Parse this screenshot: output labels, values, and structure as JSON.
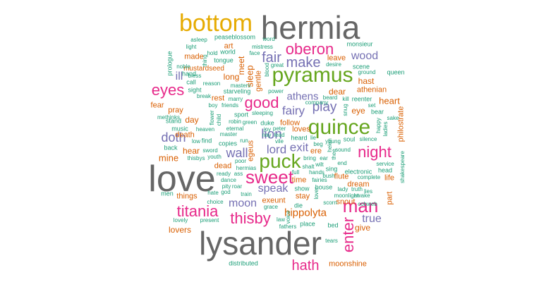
{
  "words": [
    {
      "text": "love",
      "color": "#666666"
    },
    {
      "text": "lysander",
      "color": "#666666"
    },
    {
      "text": "hermia",
      "color": "#666666"
    },
    {
      "text": "bottom",
      "color": "#e6ab02"
    },
    {
      "text": "pyramus",
      "color": "#66a61e"
    },
    {
      "text": "quince",
      "color": "#66a61e"
    },
    {
      "text": "puck",
      "color": "#66a61e"
    },
    {
      "text": "sweet",
      "color": "#e7298a"
    },
    {
      "text": "man",
      "color": "#e7298a"
    },
    {
      "text": "night",
      "color": "#e7298a"
    },
    {
      "text": "oberon",
      "color": "#e7298a"
    },
    {
      "text": "eyes",
      "color": "#e7298a"
    },
    {
      "text": "good",
      "color": "#e7298a"
    },
    {
      "text": "enter",
      "color": "#e7298a"
    },
    {
      "text": "thisby",
      "color": "#e7298a"
    },
    {
      "text": "titania",
      "color": "#e7298a"
    },
    {
      "text": "hath",
      "color": "#e7298a"
    },
    {
      "text": "fair",
      "color": "#7570b3"
    },
    {
      "text": "make",
      "color": "#7570b3"
    },
    {
      "text": "play",
      "color": "#7570b3"
    },
    {
      "text": "lion",
      "color": "#7570b3"
    },
    {
      "text": "fairy",
      "color": "#7570b3"
    },
    {
      "text": "doth",
      "color": "#7570b3"
    },
    {
      "text": "lord",
      "color": "#7570b3"
    },
    {
      "text": "exit",
      "color": "#7570b3"
    },
    {
      "text": "wall",
      "color": "#7570b3"
    },
    {
      "text": "speak",
      "color": "#7570b3"
    },
    {
      "text": "moon",
      "color": "#7570b3"
    },
    {
      "text": "true",
      "color": "#7570b3"
    },
    {
      "text": "wood",
      "color": "#7570b3"
    },
    {
      "text": "athens",
      "color": "#7570b3"
    },
    {
      "text": "hippolyta",
      "color": "#d95f02"
    },
    {
      "text": "ill",
      "color": "#7570b3"
    },
    {
      "text": "heart",
      "color": "#d95f02"
    },
    {
      "text": "athenian",
      "color": "#d95f02"
    },
    {
      "text": "dear",
      "color": "#d95f02"
    },
    {
      "text": "eye",
      "color": "#d95f02"
    },
    {
      "text": "hast",
      "color": "#d95f02"
    },
    {
      "text": "leave",
      "color": "#d95f02"
    },
    {
      "text": "sleep",
      "color": "#d95f02"
    },
    {
      "text": "meet",
      "color": "#d95f02"
    },
    {
      "text": "long",
      "color": "#d95f02"
    },
    {
      "text": "made",
      "color": "#d95f02"
    },
    {
      "text": "art",
      "color": "#d95f02"
    },
    {
      "text": "rest",
      "color": "#d95f02"
    },
    {
      "text": "day",
      "color": "#d95f02"
    },
    {
      "text": "fear",
      "color": "#d95f02"
    },
    {
      "text": "pray",
      "color": "#d95f02"
    },
    {
      "text": "mine",
      "color": "#d95f02"
    },
    {
      "text": "hear",
      "color": "#d95f02"
    },
    {
      "text": "death",
      "color": "#d95f02"
    },
    {
      "text": "dead",
      "color": "#d95f02"
    },
    {
      "text": "things",
      "color": "#d95f02"
    },
    {
      "text": "lovers",
      "color": "#d95f02"
    },
    {
      "text": "exeunt",
      "color": "#d95f02"
    },
    {
      "text": "time",
      "color": "#d95f02"
    },
    {
      "text": "follow",
      "color": "#d95f02"
    },
    {
      "text": "loves",
      "color": "#d95f02"
    },
    {
      "text": "stay",
      "color": "#d95f02"
    },
    {
      "text": "flute",
      "color": "#d95f02"
    },
    {
      "text": "dream",
      "color": "#d95f02"
    },
    {
      "text": "snout",
      "color": "#d95f02"
    },
    {
      "text": "give",
      "color": "#d95f02"
    },
    {
      "text": "life",
      "color": "#d95f02"
    },
    {
      "text": "part",
      "color": "#d95f02"
    },
    {
      "text": "gentle",
      "color": "#d95f02"
    },
    {
      "text": "egeus",
      "color": "#d95f02"
    },
    {
      "text": "ere",
      "color": "#d95f02"
    },
    {
      "text": "moonshine",
      "color": "#d95f02"
    },
    {
      "text": "philostrate",
      "color": "#d95f02"
    },
    {
      "text": "mustardseed",
      "color": "#d95f02"
    },
    {
      "text": "peaseblossom",
      "color": "#1b9e77"
    },
    {
      "text": "asleep",
      "color": "#1b9e77"
    },
    {
      "text": "word",
      "color": "#1b9e77"
    },
    {
      "text": "mistress",
      "color": "#1b9e77"
    },
    {
      "text": "light",
      "color": "#1b9e77"
    },
    {
      "text": "hold",
      "color": "#1b9e77"
    },
    {
      "text": "world",
      "color": "#1b9e77"
    },
    {
      "text": "thing",
      "color": "#1b9e77"
    },
    {
      "text": "tongue",
      "color": "#1b9e77"
    },
    {
      "text": "noble",
      "color": "#1b9e77"
    },
    {
      "text": "bless",
      "color": "#1b9e77"
    },
    {
      "text": "hand",
      "color": "#1b9e77"
    },
    {
      "text": "prologue",
      "color": "#1b9e77"
    },
    {
      "text": "call",
      "color": "#1b9e77"
    },
    {
      "text": "reason",
      "color": "#1b9e77"
    },
    {
      "text": "masters",
      "color": "#1b9e77"
    },
    {
      "text": "sight",
      "color": "#1b9e77"
    },
    {
      "text": "break",
      "color": "#1b9e77"
    },
    {
      "text": "starveling",
      "color": "#1b9e77"
    },
    {
      "text": "power",
      "color": "#1b9e77"
    },
    {
      "text": "great",
      "color": "#1b9e77"
    },
    {
      "text": "blood",
      "color": "#1b9e77"
    },
    {
      "text": "face",
      "color": "#1b9e77"
    },
    {
      "text": "desire",
      "color": "#1b9e77"
    },
    {
      "text": "monsieur",
      "color": "#1b9e77"
    },
    {
      "text": "scene",
      "color": "#1b9e77"
    },
    {
      "text": "ground",
      "color": "#1b9e77"
    },
    {
      "text": "queen",
      "color": "#1b9e77"
    },
    {
      "text": "company",
      "color": "#1b9e77"
    },
    {
      "text": "kill",
      "color": "#1b9e77"
    },
    {
      "text": "reenter",
      "color": "#1b9e77"
    },
    {
      "text": "beard",
      "color": "#1b9e77"
    },
    {
      "text": "snug",
      "color": "#1b9e77"
    },
    {
      "text": "methinks",
      "color": "#1b9e77"
    },
    {
      "text": "boy",
      "color": "#1b9e77"
    },
    {
      "text": "friends",
      "color": "#1b9e77"
    },
    {
      "text": "marry",
      "color": "#1b9e77"
    },
    {
      "text": "set",
      "color": "#1b9e77"
    },
    {
      "text": "bear",
      "color": "#1b9e77"
    },
    {
      "text": "sake",
      "color": "#1b9e77"
    },
    {
      "text": "happy",
      "color": "#1b9e77"
    },
    {
      "text": "ladies",
      "color": "#1b9e77"
    },
    {
      "text": "stand",
      "color": "#1b9e77"
    },
    {
      "text": "flower",
      "color": "#1b9e77"
    },
    {
      "text": "child",
      "color": "#1b9e77"
    },
    {
      "text": "sport",
      "color": "#1b9e77"
    },
    {
      "text": "sleeping",
      "color": "#1b9e77"
    },
    {
      "text": "robin",
      "color": "#1b9e77"
    },
    {
      "text": "green",
      "color": "#1b9e77"
    },
    {
      "text": "duke",
      "color": "#1b9e77"
    },
    {
      "text": "music",
      "color": "#1b9e77"
    },
    {
      "text": "heaven",
      "color": "#1b9e77"
    },
    {
      "text": "eternal",
      "color": "#1b9e77"
    },
    {
      "text": "joy",
      "color": "#1b9e77"
    },
    {
      "text": "peter",
      "color": "#1b9e77"
    },
    {
      "text": "master",
      "color": "#1b9e77"
    },
    {
      "text": "low",
      "color": "#1b9e77"
    },
    {
      "text": "find",
      "color": "#1b9e77"
    },
    {
      "text": "run",
      "color": "#1b9e77"
    },
    {
      "text": "nay",
      "color": "#1b9e77"
    },
    {
      "text": "lead",
      "color": "#1b9e77"
    },
    {
      "text": "heard",
      "color": "#1b9e77"
    },
    {
      "text": "lie",
      "color": "#1b9e77"
    },
    {
      "text": "back",
      "color": "#1b9e77"
    },
    {
      "text": "copies",
      "color": "#1b9e77"
    },
    {
      "text": "sword",
      "color": "#1b9e77"
    },
    {
      "text": "thisbys",
      "color": "#1b9e77"
    },
    {
      "text": "vile",
      "color": "#1b9e77"
    },
    {
      "text": "beg",
      "color": "#1b9e77"
    },
    {
      "text": "young",
      "color": "#1b9e77"
    },
    {
      "text": "soul",
      "color": "#1b9e77"
    },
    {
      "text": "silence",
      "color": "#1b9e77"
    },
    {
      "text": "sound",
      "color": "#1b9e77"
    },
    {
      "text": "youth",
      "color": "#1b9e77"
    },
    {
      "text": "bring",
      "color": "#1b9e77"
    },
    {
      "text": "ear",
      "color": "#1b9e77"
    },
    {
      "text": "poor",
      "color": "#1b9e77"
    },
    {
      "text": "end",
      "color": "#1b9e77"
    },
    {
      "text": "service",
      "color": "#1b9e77"
    },
    {
      "text": "ready",
      "color": "#1b9e77"
    },
    {
      "text": "ass",
      "color": "#1b9e77"
    },
    {
      "text": "hermias",
      "color": "#1b9e77"
    },
    {
      "text": "full",
      "color": "#1b9e77"
    },
    {
      "text": "hands",
      "color": "#1b9e77"
    },
    {
      "text": "sing",
      "color": "#1b9e77"
    },
    {
      "text": "electronic",
      "color": "#1b9e77"
    },
    {
      "text": "head",
      "color": "#1b9e77"
    },
    {
      "text": "dance",
      "color": "#1b9e77"
    },
    {
      "text": "complete",
      "color": "#1b9e77"
    },
    {
      "text": "shakespeare",
      "color": "#1b9e77"
    },
    {
      "text": "pity",
      "color": "#1b9e77"
    },
    {
      "text": "roar",
      "color": "#1b9e77"
    },
    {
      "text": "train",
      "color": "#1b9e77"
    },
    {
      "text": "fairies",
      "color": "#1b9e77"
    },
    {
      "text": "bush",
      "color": "#1b9e77"
    },
    {
      "text": "lady",
      "color": "#1b9e77"
    },
    {
      "text": "truth",
      "color": "#1b9e77"
    },
    {
      "text": "lies",
      "color": "#1b9e77"
    },
    {
      "text": "men",
      "color": "#1b9e77"
    },
    {
      "text": "hate",
      "color": "#1b9e77"
    },
    {
      "text": "god",
      "color": "#1b9e77"
    },
    {
      "text": "show",
      "color": "#1b9e77"
    },
    {
      "text": "house",
      "color": "#1b9e77"
    },
    {
      "text": "moonlight",
      "color": "#1b9e77"
    },
    {
      "text": "awake",
      "color": "#1b9e77"
    },
    {
      "text": "choice",
      "color": "#1b9e77"
    },
    {
      "text": "grace",
      "color": "#1b9e77"
    },
    {
      "text": "die",
      "color": "#1b9e77"
    },
    {
      "text": "scorn",
      "color": "#1b9e77"
    },
    {
      "text": "cobweb",
      "color": "#1b9e77"
    },
    {
      "text": "lovely",
      "color": "#1b9e77"
    },
    {
      "text": "present",
      "color": "#1b9e77"
    },
    {
      "text": "law",
      "color": "#1b9e77"
    },
    {
      "text": "fathers",
      "color": "#1b9e77"
    },
    {
      "text": "place",
      "color": "#1b9e77"
    },
    {
      "text": "bed",
      "color": "#1b9e77"
    },
    {
      "text": "tears",
      "color": "#1b9e77"
    },
    {
      "text": "distributed",
      "color": "#1b9e77"
    },
    {
      "text": "voice",
      "color": "#1b9e77"
    },
    {
      "text": "lover",
      "color": "#1b9e77"
    },
    {
      "text": "shalt",
      "color": "#1b9e77"
    },
    {
      "text": "wilt",
      "color": "#1b9e77"
    },
    {
      "text": "helen",
      "color": "#1b9e77"
    },
    {
      "text": "thee",
      "color": "#1b9e77"
    }
  ]
}
